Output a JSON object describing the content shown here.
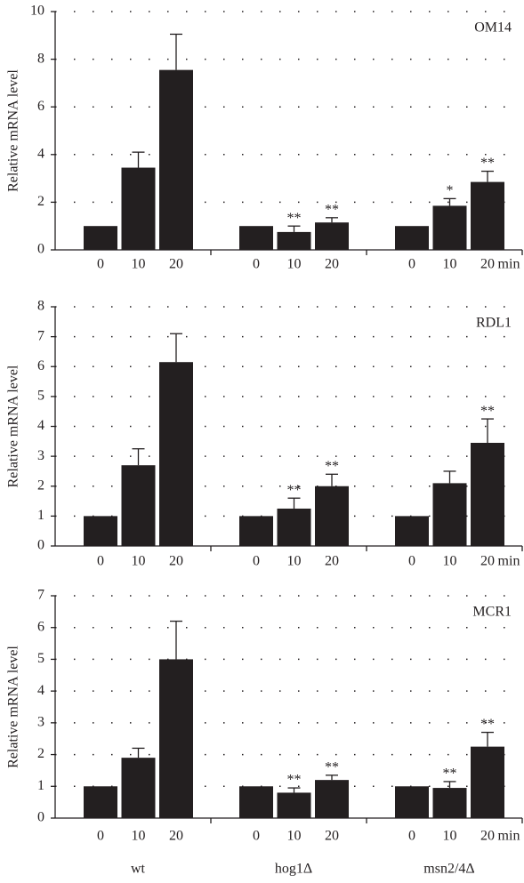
{
  "chart_data": [
    {
      "type": "bar",
      "title": "OM14",
      "y_label": "Relative mRNA level",
      "unit": "min",
      "categories": [
        "0",
        "10",
        "20",
        "0",
        "10",
        "20",
        "0",
        "10",
        "20"
      ],
      "values": [
        1.0,
        3.45,
        7.55,
        1.0,
        0.75,
        1.15,
        1.0,
        1.85,
        2.85
      ],
      "errors": [
        null,
        0.65,
        1.5,
        null,
        0.25,
        0.2,
        null,
        0.3,
        0.45
      ],
      "significance": [
        null,
        null,
        null,
        null,
        "**",
        "**",
        null,
        "*",
        "**"
      ],
      "color": "#231f20",
      "ylim": [
        0,
        10
      ],
      "yticks": [
        0,
        2,
        4,
        6,
        8,
        10
      ],
      "grid": true
    },
    {
      "type": "bar",
      "title": "RDL1",
      "y_label": "Relative mRNA level",
      "unit": "min",
      "categories": [
        "0",
        "10",
        "20",
        "0",
        "10",
        "20",
        "0",
        "10",
        "20"
      ],
      "values": [
        1.0,
        2.7,
        6.15,
        1.0,
        1.25,
        2.0,
        1.0,
        2.1,
        3.45
      ],
      "errors": [
        null,
        0.55,
        0.95,
        null,
        0.35,
        0.4,
        null,
        0.4,
        0.8
      ],
      "significance": [
        null,
        null,
        null,
        null,
        "**",
        "**",
        null,
        null,
        "**"
      ],
      "color": "#231f20",
      "ylim": [
        0,
        8
      ],
      "yticks": [
        0,
        1,
        2,
        3,
        4,
        5,
        6,
        7,
        8
      ],
      "grid": true
    },
    {
      "type": "bar",
      "title": "MCR1",
      "y_label": "Relative mRNA level",
      "unit": "min",
      "categories": [
        "0",
        "10",
        "20",
        "0",
        "10",
        "20",
        "0",
        "10",
        "20"
      ],
      "values": [
        1.0,
        1.9,
        5.0,
        1.0,
        0.8,
        1.2,
        1.0,
        0.95,
        2.25
      ],
      "errors": [
        null,
        0.3,
        1.2,
        null,
        0.15,
        0.15,
        null,
        0.2,
        0.45
      ],
      "significance": [
        null,
        null,
        null,
        null,
        "**",
        "**",
        null,
        "**",
        "**"
      ],
      "group_labels": [
        "wt",
        "hog1Δ",
        "msn2/4Δ"
      ],
      "color": "#231f20",
      "ylim": [
        0,
        7
      ],
      "yticks": [
        0,
        1,
        2,
        3,
        4,
        5,
        6,
        7
      ],
      "grid": true
    }
  ]
}
